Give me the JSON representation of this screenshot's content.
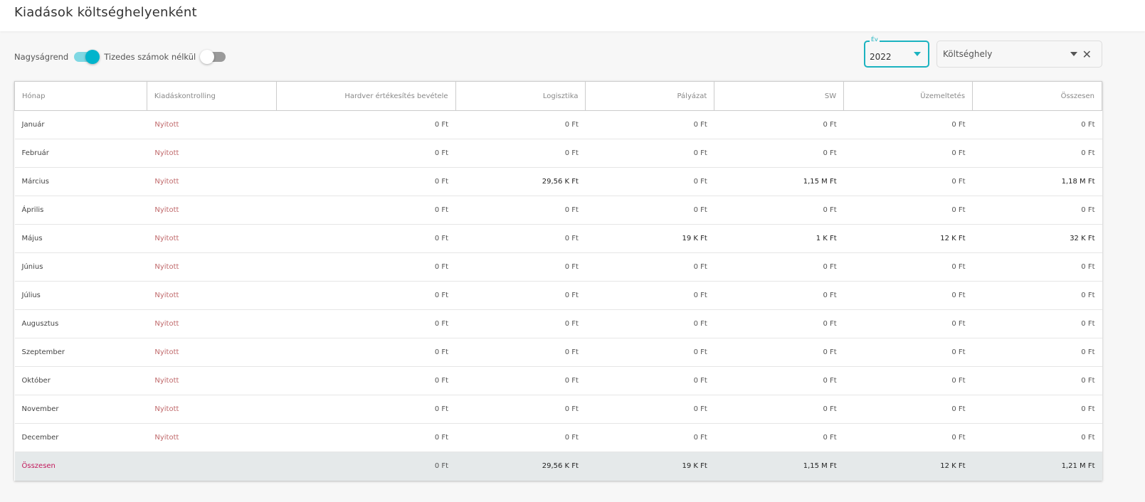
{
  "header": {
    "title": "Kiadások költséghelyenként"
  },
  "toggles": [
    {
      "label": "Nagyságrend",
      "on": true
    },
    {
      "label": "Tizedes számok nélkül",
      "on": false
    }
  ],
  "year_select": {
    "label": "Év",
    "value": "2022",
    "accent": "#1bb3c0"
  },
  "costcenter_select": {
    "placeholder": "Költséghely"
  },
  "table": {
    "columns": [
      "Hónap",
      "Kiadáskontrolling",
      "Hardver értékesítés bevétele",
      "Logisztika",
      "Pályázat",
      "SW",
      "Üzemeltetés",
      "Összesen"
    ],
    "rows": [
      [
        "Január",
        "Nyitott",
        "0 Ft",
        "0 Ft",
        "0 Ft",
        "0 Ft",
        "0 Ft",
        "0 Ft"
      ],
      [
        "Február",
        "Nyitott",
        "0 Ft",
        "0 Ft",
        "0 Ft",
        "0 Ft",
        "0 Ft",
        "0 Ft"
      ],
      [
        "Március",
        "Nyitott",
        "0 Ft",
        "29,56 K Ft",
        "0 Ft",
        "1,15 M Ft",
        "0 Ft",
        "1,18 M Ft"
      ],
      [
        "Április",
        "Nyitott",
        "0 Ft",
        "0 Ft",
        "0 Ft",
        "0 Ft",
        "0 Ft",
        "0 Ft"
      ],
      [
        "Május",
        "Nyitott",
        "0 Ft",
        "0 Ft",
        "19 K Ft",
        "1 K Ft",
        "12 K Ft",
        "32 K Ft"
      ],
      [
        "Június",
        "Nyitott",
        "0 Ft",
        "0 Ft",
        "0 Ft",
        "0 Ft",
        "0 Ft",
        "0 Ft"
      ],
      [
        "Július",
        "Nyitott",
        "0 Ft",
        "0 Ft",
        "0 Ft",
        "0 Ft",
        "0 Ft",
        "0 Ft"
      ],
      [
        "Augusztus",
        "Nyitott",
        "0 Ft",
        "0 Ft",
        "0 Ft",
        "0 Ft",
        "0 Ft",
        "0 Ft"
      ],
      [
        "Szeptember",
        "Nyitott",
        "0 Ft",
        "0 Ft",
        "0 Ft",
        "0 Ft",
        "0 Ft",
        "0 Ft"
      ],
      [
        "Október",
        "Nyitott",
        "0 Ft",
        "0 Ft",
        "0 Ft",
        "0 Ft",
        "0 Ft",
        "0 Ft"
      ],
      [
        "November",
        "Nyitott",
        "0 Ft",
        "0 Ft",
        "0 Ft",
        "0 Ft",
        "0 Ft",
        "0 Ft"
      ],
      [
        "December",
        "Nyitott",
        "0 Ft",
        "0 Ft",
        "0 Ft",
        "0 Ft",
        "0 Ft",
        "0 Ft"
      ]
    ],
    "total": [
      "Összesen",
      "",
      "0 Ft",
      "29,56 K Ft",
      "19 K Ft",
      "1,15 M Ft",
      "12 K Ft",
      "1,21 M Ft"
    ]
  }
}
